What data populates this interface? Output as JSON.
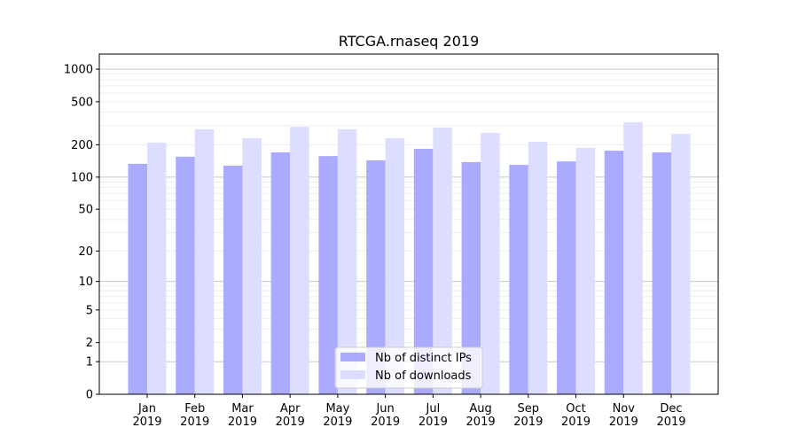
{
  "chart_data": {
    "type": "bar",
    "title": "RTCGA.rnaseq 2019",
    "xlabel": "",
    "ylabel": "",
    "yscale": "log(1+y)",
    "ylim": [
      0,
      1380
    ],
    "yticks": [
      0,
      1,
      2,
      5,
      10,
      20,
      50,
      100,
      200,
      500,
      1000
    ],
    "grid": true,
    "legend_position": "bottom-center",
    "categories": [
      "Jan\n2019",
      "Feb\n2019",
      "Mar\n2019",
      "Apr\n2019",
      "May\n2019",
      "Jun\n2019",
      "Jul\n2019",
      "Aug\n2019",
      "Sep\n2019",
      "Oct\n2019",
      "Nov\n2019",
      "Dec\n2019"
    ],
    "series": [
      {
        "name": "Nb of distinct IPs",
        "color": "#aaaaff",
        "values": [
          133,
          155,
          128,
          170,
          157,
          143,
          183,
          138,
          130,
          140,
          176,
          170
        ]
      },
      {
        "name": "Nb of downloads",
        "color": "#ddddff",
        "values": [
          209,
          278,
          230,
          293,
          278,
          230,
          288,
          257,
          213,
          187,
          323,
          252
        ]
      }
    ]
  }
}
